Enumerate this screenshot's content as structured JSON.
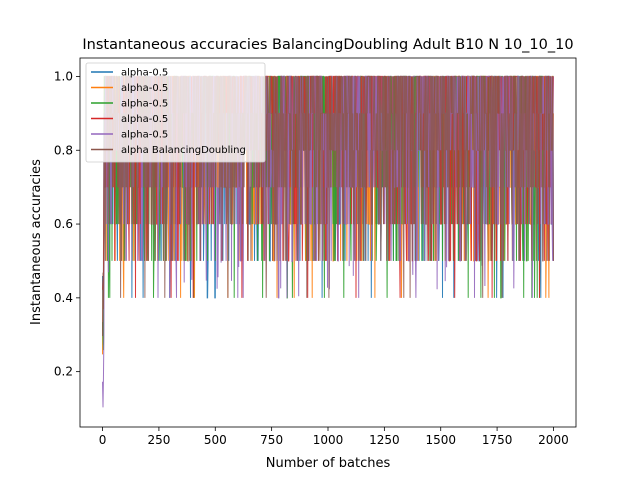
{
  "chart_data": {
    "type": "line",
    "title": "Instantaneous accuracies BalancingDoubling Adult B10 N 10_10_10",
    "xlabel": "Number of batches",
    "ylabel": "Instantaneous accuracies",
    "xlim": [
      -100,
      2100
    ],
    "ylim": [
      0.05,
      1.05
    ],
    "xticks": [
      0,
      250,
      500,
      750,
      1000,
      1250,
      1500,
      1750,
      2000
    ],
    "yticks": [
      0.2,
      0.4,
      0.6,
      0.8,
      1.0
    ],
    "xtick_labels": [
      "0",
      "250",
      "500",
      "750",
      "1000",
      "1250",
      "1500",
      "1750",
      "2000"
    ],
    "ytick_labels": [
      "0.2",
      "0.4",
      "0.6",
      "0.8",
      "1.0"
    ],
    "grid": false,
    "legend_position": "top-left",
    "series": [
      {
        "name": "alpha-0.5",
        "color": "#1f77b4"
      },
      {
        "name": "alpha-0.5",
        "color": "#ff7f0e"
      },
      {
        "name": "alpha-0.5",
        "color": "#2ca02c"
      },
      {
        "name": "alpha-0.5",
        "color": "#d62728"
      },
      {
        "name": "alpha-0.5",
        "color": "#9467bd"
      },
      {
        "name": "alpha BalancingDoubling",
        "color": "#8c564b"
      }
    ],
    "summary": {
      "x_range": [
        0,
        2000
      ],
      "typical_range": [
        0.5,
        1.0
      ],
      "early_min": 0.1
    }
  }
}
